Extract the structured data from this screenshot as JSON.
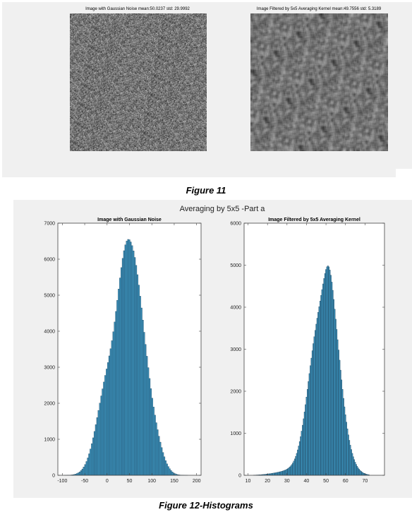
{
  "figure11": {
    "left_title": "Image with Gaussian Noise mean:50.0237 std: 29.9992",
    "right_title": "Image Filtered by 5x5 Averaging Kernel mean:49.7556 std: 5.3189",
    "caption": "Figure 11"
  },
  "figure12": {
    "suptitle": "Averaging by 5x5 -Part a",
    "caption": "Figure 12-Histograms"
  },
  "colors": {
    "bar_fill": "#3a8fb8",
    "bar_edge": "#16324a",
    "panel_bg": "#f0f0f0"
  },
  "chart_data": [
    {
      "type": "bar",
      "title": "Image with Gaussian Noise",
      "xlim": [
        -110,
        210
      ],
      "ylim": [
        0,
        7000
      ],
      "xticks": [
        -100,
        -50,
        0,
        50,
        100,
        150,
        200
      ],
      "yticks": [
        0,
        1000,
        2000,
        3000,
        4000,
        5000,
        6000,
        7000
      ],
      "bin_width": 3,
      "x": [
        -94,
        -91,
        -88,
        -85,
        -82,
        -79,
        -76,
        -73,
        -70,
        -67,
        -64,
        -61,
        -58,
        -55,
        -52,
        -49,
        -46,
        -43,
        -40,
        -37,
        -34,
        -31,
        -28,
        -25,
        -22,
        -19,
        -16,
        -13,
        -10,
        -7,
        -4,
        -1,
        2,
        5,
        8,
        11,
        14,
        17,
        20,
        23,
        26,
        29,
        32,
        35,
        38,
        41,
        44,
        47,
        50,
        53,
        56,
        59,
        62,
        65,
        68,
        71,
        74,
        77,
        80,
        83,
        86,
        89,
        92,
        95,
        98,
        101,
        104,
        107,
        110,
        113,
        116,
        119,
        122,
        125,
        128,
        131,
        134,
        137,
        140,
        143,
        146,
        149,
        152,
        155,
        158,
        161,
        164,
        167,
        170,
        173,
        176,
        179,
        182,
        185,
        188,
        191,
        194
      ],
      "values": [
        1,
        2,
        3,
        5,
        7,
        11,
        16,
        24,
        35,
        50,
        70,
        96,
        131,
        175,
        231,
        300,
        383,
        483,
        598,
        730,
        878,
        1041,
        1218,
        1405,
        1601,
        1802,
        2004,
        2205,
        2401,
        2591,
        2774,
        2952,
        3130,
        3315,
        3515,
        3737,
        3985,
        4257,
        4551,
        4860,
        5173,
        5480,
        5767,
        6023,
        6236,
        6399,
        6505,
        6550,
        6540,
        6480,
        6376,
        6232,
        6049,
        5828,
        5570,
        5283,
        4973,
        4647,
        4311,
        3971,
        3635,
        3306,
        2989,
        2688,
        2405,
        2141,
        1896,
        1670,
        1460,
        1266,
        1086,
        921,
        770,
        634,
        513,
        408,
        318,
        243,
        182,
        133,
        95,
        66,
        45,
        30,
        19,
        12,
        8,
        5,
        3,
        2,
        1,
        1,
        0,
        0,
        0,
        0,
        0
      ]
    },
    {
      "type": "bar",
      "title": "Image Filtered by 5x5 Averaging Kernel",
      "xlim": [
        8,
        80
      ],
      "ylim": [
        0,
        6000
      ],
      "xticks": [
        10,
        20,
        30,
        40,
        50,
        60,
        70
      ],
      "yticks": [
        0,
        1000,
        2000,
        3000,
        4000,
        5000,
        6000
      ],
      "bin_width": 0.5,
      "x": [
        13,
        13.5,
        14,
        14.5,
        15,
        15.5,
        16,
        16.5,
        17,
        17.5,
        18,
        18.5,
        19,
        19.5,
        20,
        20.5,
        21,
        21.5,
        22,
        22.5,
        23,
        23.5,
        24,
        24.5,
        25,
        25.5,
        26,
        26.5,
        27,
        27.5,
        28,
        28.5,
        29,
        29.5,
        30,
        30.5,
        31,
        31.5,
        32,
        32.5,
        33,
        33.5,
        34,
        34.5,
        35,
        35.5,
        36,
        36.5,
        37,
        37.5,
        38,
        38.5,
        39,
        39.5,
        40,
        40.5,
        41,
        41.5,
        42,
        42.5,
        43,
        43.5,
        44,
        44.5,
        45,
        45.5,
        46,
        46.5,
        47,
        47.5,
        48,
        48.5,
        49,
        49.5,
        50,
        50.5,
        51,
        51.5,
        52,
        52.5,
        53,
        53.5,
        54,
        54.5,
        55,
        55.5,
        56,
        56.5,
        57,
        57.5,
        58,
        58.5,
        59,
        59.5,
        60,
        60.5,
        61,
        61.5,
        62,
        62.5,
        63,
        63.5,
        64,
        64.5,
        65,
        65.5,
        66,
        66.5,
        67,
        67.5,
        68,
        68.5,
        69,
        69.5,
        70,
        70.5,
        71,
        71.5,
        72
      ],
      "values": [
        5,
        6,
        7,
        8,
        9,
        10,
        12,
        14,
        16,
        18,
        20,
        22,
        25,
        28,
        31,
        34,
        37,
        40,
        44,
        48,
        52,
        56,
        60,
        64,
        69,
        74,
        79,
        85,
        91,
        98,
        105,
        113,
        122,
        133,
        146,
        161,
        179,
        201,
        227,
        258,
        295,
        339,
        391,
        452,
        523,
        605,
        698,
        804,
        921,
        1051,
        1193,
        1346,
        1510,
        1682,
        1862,
        2047,
        2234,
        2422,
        2608,
        2790,
        2966,
        3135,
        3297,
        3451,
        3598,
        3740,
        3878,
        4013,
        4148,
        4284,
        4420,
        4555,
        4685,
        4803,
        4899,
        4963,
        4985,
        4960,
        4885,
        4763,
        4599,
        4403,
        4186,
        3955,
        3716,
        3472,
        3227,
        2983,
        2741,
        2503,
        2271,
        2047,
        1832,
        1630,
        1441,
        1267,
        1107,
        963,
        833,
        717,
        614,
        523,
        443,
        373,
        312,
        260,
        215,
        177,
        145,
        118,
        95,
        76,
        61,
        48,
        38,
        30,
        23,
        18,
        14
      ]
    }
  ]
}
